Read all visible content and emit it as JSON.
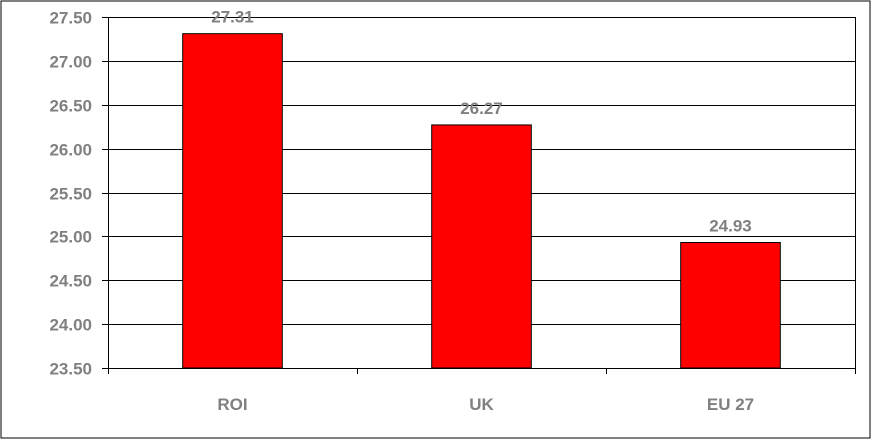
{
  "chart_data": {
    "type": "bar",
    "categories": [
      "ROI",
      "UK",
      "EU 27"
    ],
    "values": [
      27.31,
      26.27,
      24.93
    ],
    "data_labels": [
      "27.31",
      "26.27",
      "24.93"
    ],
    "ylim": [
      23.5,
      27.5
    ],
    "yticks": [
      "23.50",
      "24.00",
      "24.50",
      "25.00",
      "25.50",
      "26.00",
      "26.50",
      "27.00",
      "27.50"
    ],
    "ytick_values": [
      23.5,
      24.0,
      24.5,
      25.0,
      25.5,
      26.0,
      26.5,
      27.0,
      27.5
    ],
    "grid": true,
    "bar_color": "#ff0000",
    "bar_edge_color": "#000000",
    "grid_color": "#000000",
    "label_color": "#808080"
  }
}
